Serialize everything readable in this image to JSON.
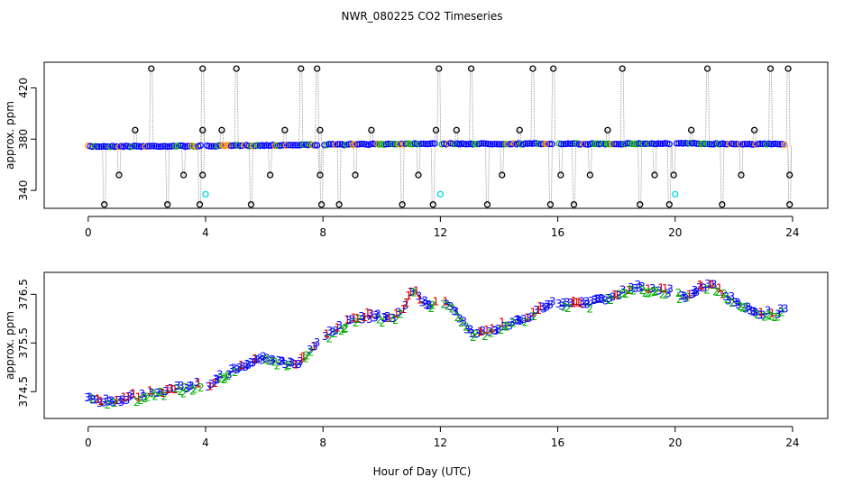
{
  "figure": {
    "title": "NWR_080225  CO2 Timeseries",
    "xlabel": "Hour of Day (UTC)"
  },
  "colors": {
    "black": "#000000",
    "blue": "#0000ff",
    "cyan": "#00d8e0",
    "red": "#dd0000",
    "green": "#00b000",
    "orange": "#ff8800",
    "gray": "#9a9a9a"
  },
  "chart_data": [
    {
      "type": "scatter",
      "name": "top-panel",
      "title": "NWR_080225  CO2 Timeseries",
      "ylabel": "approx. ppm",
      "xlim": [
        -1.5,
        25.2
      ],
      "ylim": [
        326,
        440
      ],
      "xticks": [
        0,
        4,
        8,
        12,
        16,
        20,
        24
      ],
      "yticks": [
        340,
        380,
        420
      ],
      "baseline": 374.5,
      "calibration": {
        "high": 435,
        "ref_upper": 387,
        "ref_lower": 352,
        "low": 329,
        "high_times": [
          2.15,
          3.9,
          5.05,
          7.25,
          7.8,
          11.95,
          13.05,
          15.15,
          15.85,
          18.2,
          21.1,
          23.25,
          23.85
        ],
        "ref_upper_times": [
          1.6,
          3.9,
          4.55,
          6.7,
          7.9,
          9.65,
          11.85,
          12.55,
          14.7,
          17.7,
          20.55,
          22.7
        ],
        "ref_lower_times": [
          1.05,
          3.25,
          3.9,
          6.2,
          7.9,
          9.1,
          11.25,
          14.1,
          16.1,
          17.1,
          19.3,
          19.95,
          22.25,
          23.9
        ],
        "low_times": [
          0.55,
          2.7,
          3.8,
          5.55,
          7.95,
          8.55,
          10.7,
          11.75,
          13.6,
          15.75,
          16.55,
          18.8,
          19.8,
          21.6,
          23.9
        ]
      },
      "cyan_points": [
        {
          "x": 4.0,
          "y": 337
        },
        {
          "x": 12.0,
          "y": 337
        },
        {
          "x": 20.0,
          "y": 337
        }
      ],
      "series": [
        {
          "name": "ambient-blue",
          "color": "#0000ff"
        },
        {
          "name": "ambient-green",
          "color": "#00b000"
        },
        {
          "name": "ambient-orange",
          "color": "#ff8800"
        }
      ],
      "gaps": [
        {
          "from": 3.85,
          "to": 4.05
        },
        {
          "from": 7.85,
          "to": 8.05
        },
        {
          "from": 11.85,
          "to": 12.05
        },
        {
          "from": 15.85,
          "to": 16.05
        },
        {
          "from": 19.85,
          "to": 20.05
        }
      ],
      "segments": [
        {
          "x0": 0.0,
          "x1": 3.85,
          "y0": 374.3,
          "y1": 374.6
        },
        {
          "x0": 4.05,
          "x1": 7.85,
          "y0": 374.6,
          "y1": 375.6
        },
        {
          "x0": 8.05,
          "x1": 11.85,
          "y0": 375.6,
          "y1": 376.6
        },
        {
          "x0": 12.05,
          "x1": 15.85,
          "y0": 376.3,
          "y1": 376.4
        },
        {
          "x0": 16.05,
          "x1": 19.85,
          "y0": 376.2,
          "y1": 376.5
        },
        {
          "x0": 20.05,
          "x1": 23.75,
          "y0": 376.6,
          "y1": 376.0
        }
      ]
    },
    {
      "type": "line",
      "name": "bottom-panel",
      "ylabel": "approx. ppm",
      "xlabel": "Hour of Day (UTC)",
      "xlim": [
        -1.5,
        25.2
      ],
      "ylim": [
        373.95,
        376.95
      ],
      "xticks": [
        0,
        4,
        8,
        12,
        16,
        20,
        24
      ],
      "yticks": [
        374.5,
        375.5,
        376.5
      ],
      "markers": [
        "1",
        "2",
        "3"
      ],
      "series": [
        {
          "name": "1",
          "color": "#dd0000"
        },
        {
          "name": "2",
          "color": "#00b000"
        },
        {
          "name": "3",
          "color": "#0000ff"
        }
      ],
      "anchors": [
        [
          0.0,
          374.35
        ],
        [
          0.5,
          374.28
        ],
        [
          1.0,
          374.3
        ],
        [
          1.5,
          374.36
        ],
        [
          2.0,
          374.42
        ],
        [
          2.5,
          374.48
        ],
        [
          3.0,
          374.53
        ],
        [
          3.5,
          374.58
        ],
        [
          3.85,
          374.62
        ],
        [
          4.05,
          374.55
        ],
        [
          4.5,
          374.78
        ],
        [
          5.0,
          374.95
        ],
        [
          5.5,
          375.05
        ],
        [
          6.0,
          375.2
        ],
        [
          6.5,
          375.12
        ],
        [
          7.0,
          375.02
        ],
        [
          7.5,
          375.25
        ],
        [
          7.85,
          375.5
        ],
        [
          8.05,
          375.6
        ],
        [
          8.5,
          375.75
        ],
        [
          9.0,
          375.95
        ],
        [
          9.5,
          376.02
        ],
        [
          10.0,
          376.0
        ],
        [
          10.5,
          376.05
        ],
        [
          10.8,
          376.25
        ],
        [
          11.1,
          376.6
        ],
        [
          11.3,
          376.4
        ],
        [
          11.6,
          376.25
        ],
        [
          11.85,
          376.3
        ],
        [
          12.05,
          376.35
        ],
        [
          12.4,
          376.25
        ],
        [
          12.8,
          375.9
        ],
        [
          13.1,
          375.65
        ],
        [
          13.5,
          375.72
        ],
        [
          14.0,
          375.8
        ],
        [
          14.5,
          375.9
        ],
        [
          15.0,
          376.0
        ],
        [
          15.5,
          376.2
        ],
        [
          15.85,
          376.3
        ],
        [
          16.05,
          376.25
        ],
        [
          16.5,
          376.3
        ],
        [
          17.0,
          376.3
        ],
        [
          17.5,
          376.35
        ],
        [
          18.0,
          376.5
        ],
        [
          18.5,
          376.6
        ],
        [
          19.0,
          376.6
        ],
        [
          19.5,
          376.55
        ],
        [
          19.85,
          376.55
        ],
        [
          20.05,
          376.5
        ],
        [
          20.5,
          376.45
        ],
        [
          21.0,
          376.65
        ],
        [
          21.3,
          376.7
        ],
        [
          21.6,
          376.5
        ],
        [
          22.0,
          376.35
        ],
        [
          22.5,
          376.15
        ],
        [
          23.0,
          376.1
        ],
        [
          23.5,
          376.1
        ],
        [
          23.75,
          376.15
        ]
      ]
    }
  ]
}
